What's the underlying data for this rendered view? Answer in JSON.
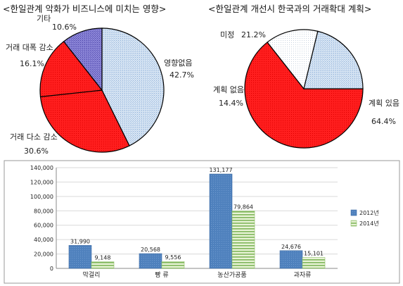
{
  "chart_data": [
    {
      "type": "pie",
      "title": "<한일관계 악화가 비즈니스에 미치는 영향>",
      "slices": [
        {
          "label": "영향없음",
          "value": 42.7,
          "value_label": "42.7%",
          "color": "#c5d8ee",
          "pattern": "blue"
        },
        {
          "label": "거래 다소 감소",
          "value": 30.6,
          "value_label": "30.6%",
          "color": "#ff2020",
          "pattern": "red"
        },
        {
          "label": "거래 대폭 감소",
          "value": 16.1,
          "value_label": "16.1%",
          "color": "#ff2020",
          "pattern": "red"
        },
        {
          "label": "기타",
          "value": 10.6,
          "value_label": "10.6%",
          "color": "#7a74c9",
          "pattern": "purple"
        }
      ]
    },
    {
      "type": "pie",
      "title": "<한일관계 개선시 한국과의 거래확대 계획>",
      "slices": [
        {
          "label": "계획 있음",
          "value": 64.4,
          "value_label": "64.4%",
          "color": "#ff2020",
          "pattern": "red"
        },
        {
          "label": "계획 없음",
          "value": 14.4,
          "value_label": "14.4%",
          "color": "#ffffff",
          "pattern": "white"
        },
        {
          "label": "미정",
          "value": 21.2,
          "value_label": "21.2%",
          "color": "#c5d8ee",
          "pattern": "blue"
        }
      ]
    },
    {
      "type": "bar",
      "categories": [
        "막걸리",
        "빵 류",
        "농산가공품",
        "과자류"
      ],
      "series": [
        {
          "name": "2012년",
          "values": [
            31990,
            20568,
            131177,
            24676
          ],
          "value_labels": [
            "31,990",
            "20,568",
            "131,177",
            "24,676"
          ],
          "color": "#4f81bd"
        },
        {
          "name": "2014년",
          "values": [
            9148,
            9556,
            79864,
            15101
          ],
          "value_labels": [
            "9,148",
            "9,556",
            "79,864",
            "15,101"
          ],
          "color": "#9bbb59"
        }
      ],
      "yticks": [
        "0",
        "20,000",
        "40,000",
        "60,000",
        "80,000",
        "100,000",
        "120,000",
        "140,000"
      ],
      "ylim": [
        0,
        140000
      ],
      "legend": "right"
    }
  ]
}
